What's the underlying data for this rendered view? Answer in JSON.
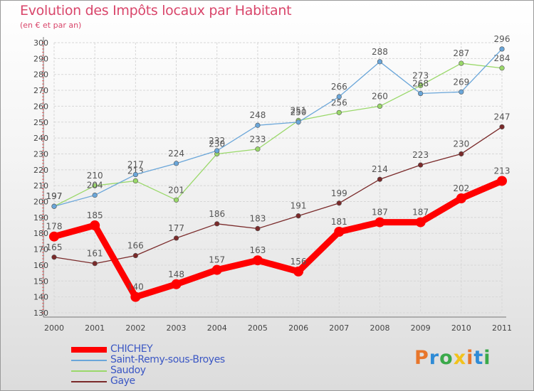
{
  "header": {
    "title": "Evolution des Impôts locaux par Habitant",
    "subtitle": "(en € et par an)"
  },
  "logo": {
    "text": "Proxiti",
    "colors": [
      "#e8762b",
      "#2e8bd6",
      "#3aa94a",
      "#f2c21b",
      "#e8762b",
      "#2e8bd6",
      "#3aa94a"
    ]
  },
  "chart_data": {
    "type": "line",
    "x": [
      "2000",
      "2001",
      "2002",
      "2003",
      "2004",
      "2005",
      "2006",
      "2007",
      "2008",
      "2009",
      "2010",
      "2011"
    ],
    "ylim": [
      130,
      300
    ],
    "yticks": [
      "130",
      "140",
      "150",
      "160",
      "170",
      "180",
      "190",
      "200",
      "210",
      "220",
      "230",
      "240",
      "250",
      "260",
      "270",
      "280",
      "290",
      "300"
    ],
    "grid": true,
    "legend_position": "bottom-left",
    "series": [
      {
        "name": "CHICHEY",
        "color": "#ff0000",
        "values": [
          178,
          185,
          140,
          148,
          157,
          163,
          156,
          181,
          187,
          187,
          202,
          213
        ]
      },
      {
        "name": "Saint-Remy-sous-Broyes",
        "color": "#6aa6d9",
        "values": [
          197,
          204,
          217,
          224,
          232,
          248,
          250,
          266,
          288,
          268,
          269,
          296
        ]
      },
      {
        "name": "Saudoy",
        "color": "#9ad86a",
        "values": [
          197,
          210,
          213,
          201,
          230,
          233,
          251,
          256,
          260,
          273,
          287,
          284
        ]
      },
      {
        "name": "Gaye",
        "color": "#7a2a2a",
        "values": [
          165,
          161,
          166,
          177,
          186,
          183,
          191,
          199,
          214,
          223,
          230,
          247
        ]
      }
    ]
  }
}
